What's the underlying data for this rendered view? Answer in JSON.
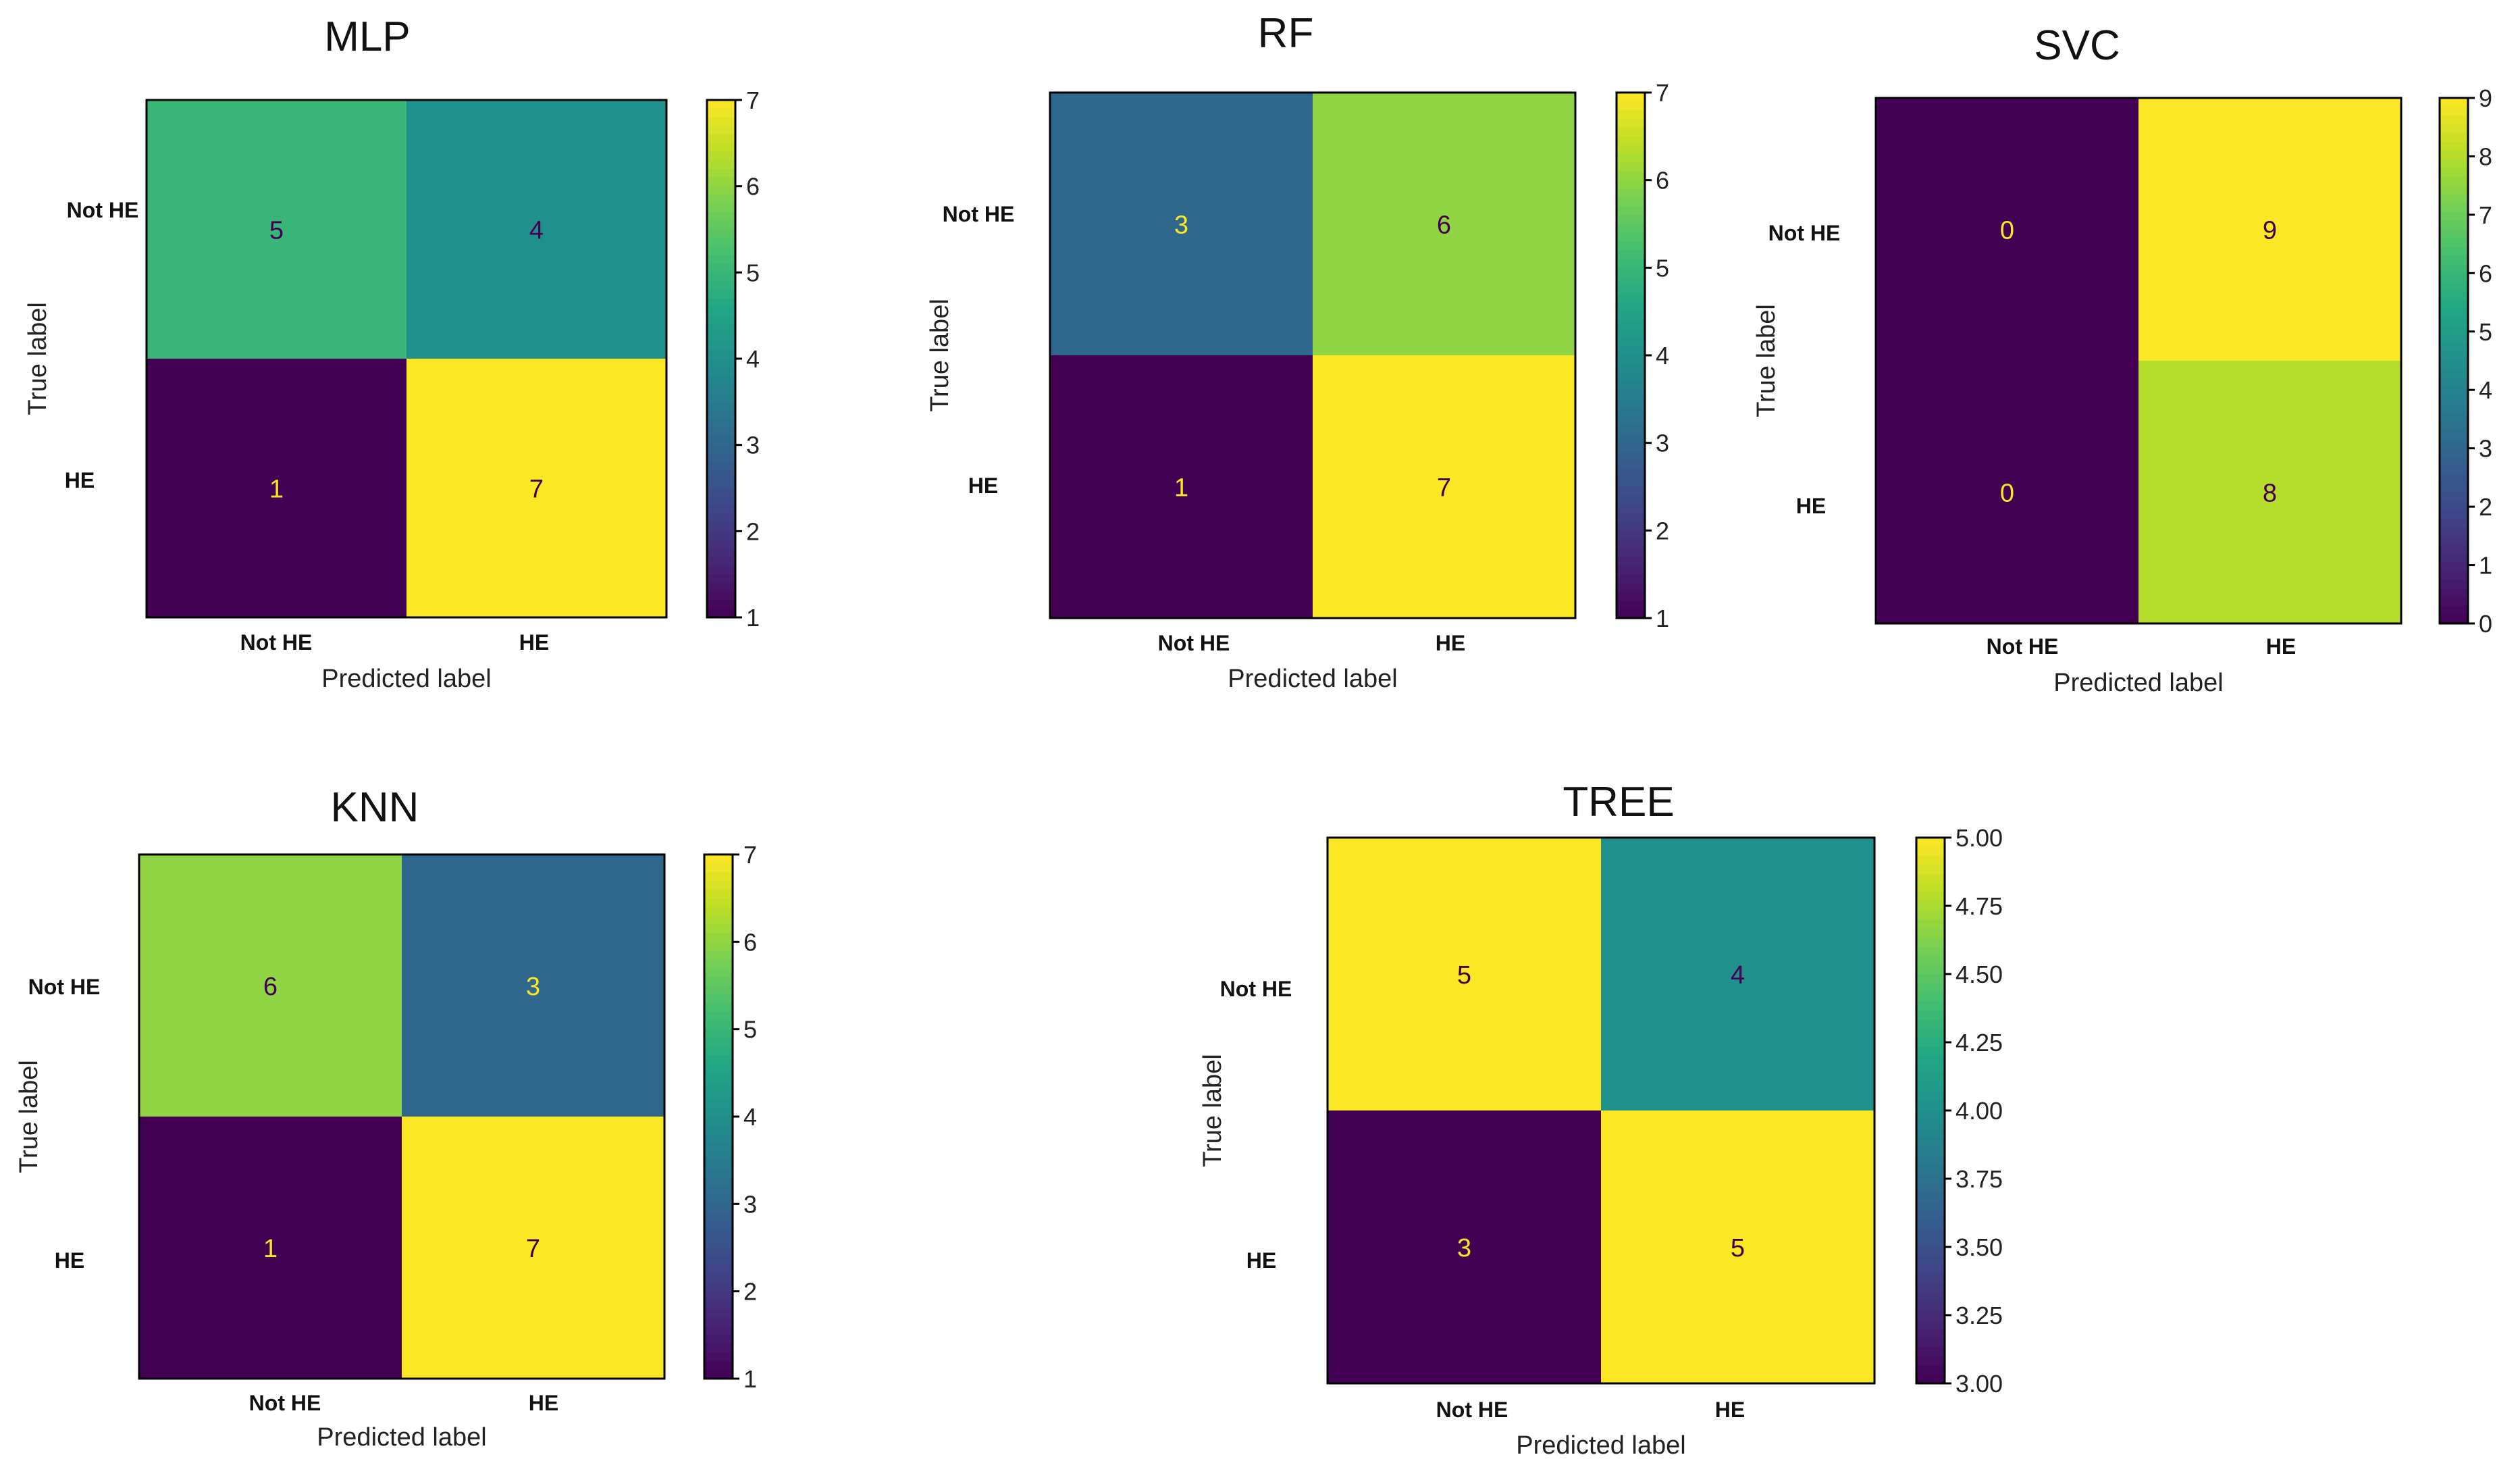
{
  "chart_data": [
    {
      "type": "heatmap",
      "title": "MLP",
      "xlabel": "Predicted label",
      "ylabel": "True label",
      "x_categories": [
        "Not HE",
        "HE"
      ],
      "y_categories": [
        "Not HE",
        "HE"
      ],
      "values": [
        [
          5,
          4
        ],
        [
          1,
          7
        ]
      ],
      "colorbar_range": [
        1,
        7
      ],
      "colorbar_ticks": [
        "1",
        "2",
        "3",
        "4",
        "5",
        "6",
        "7"
      ],
      "colormap": "viridis"
    },
    {
      "type": "heatmap",
      "title": "RF",
      "xlabel": "Predicted label",
      "ylabel": "True label",
      "x_categories": [
        "Not HE",
        "HE"
      ],
      "y_categories": [
        "Not HE",
        "HE"
      ],
      "values": [
        [
          3,
          6
        ],
        [
          1,
          7
        ]
      ],
      "colorbar_range": [
        1,
        7
      ],
      "colorbar_ticks": [
        "1",
        "2",
        "3",
        "4",
        "5",
        "6",
        "7"
      ],
      "colormap": "viridis"
    },
    {
      "type": "heatmap",
      "title": "SVC",
      "xlabel": "Predicted label",
      "ylabel": "True label",
      "x_categories": [
        "Not HE",
        "HE"
      ],
      "y_categories": [
        "Not HE",
        "HE"
      ],
      "values": [
        [
          0,
          9
        ],
        [
          0,
          8
        ]
      ],
      "colorbar_range": [
        0,
        9
      ],
      "colorbar_ticks": [
        "0",
        "1",
        "2",
        "3",
        "4",
        "5",
        "6",
        "7",
        "8",
        "9"
      ],
      "colormap": "viridis"
    },
    {
      "type": "heatmap",
      "title": "KNN",
      "xlabel": "Predicted label",
      "ylabel": "True label",
      "x_categories": [
        "Not HE",
        "HE"
      ],
      "y_categories": [
        "Not HE",
        "HE"
      ],
      "values": [
        [
          6,
          3
        ],
        [
          1,
          7
        ]
      ],
      "colorbar_range": [
        1,
        7
      ],
      "colorbar_ticks": [
        "1",
        "2",
        "3",
        "4",
        "5",
        "6",
        "7"
      ],
      "colormap": "viridis"
    },
    {
      "type": "heatmap",
      "title": "TREE",
      "xlabel": "Predicted label",
      "ylabel": "True label",
      "x_categories": [
        "Not HE",
        "HE"
      ],
      "y_categories": [
        "Not HE",
        "HE"
      ],
      "values": [
        [
          5,
          4
        ],
        [
          3,
          5
        ]
      ],
      "colorbar_range": [
        3,
        5
      ],
      "colorbar_ticks": [
        "3.00",
        "3.25",
        "3.50",
        "3.75",
        "4.00",
        "4.25",
        "4.50",
        "4.75",
        "5.00"
      ],
      "colormap": "viridis"
    }
  ]
}
